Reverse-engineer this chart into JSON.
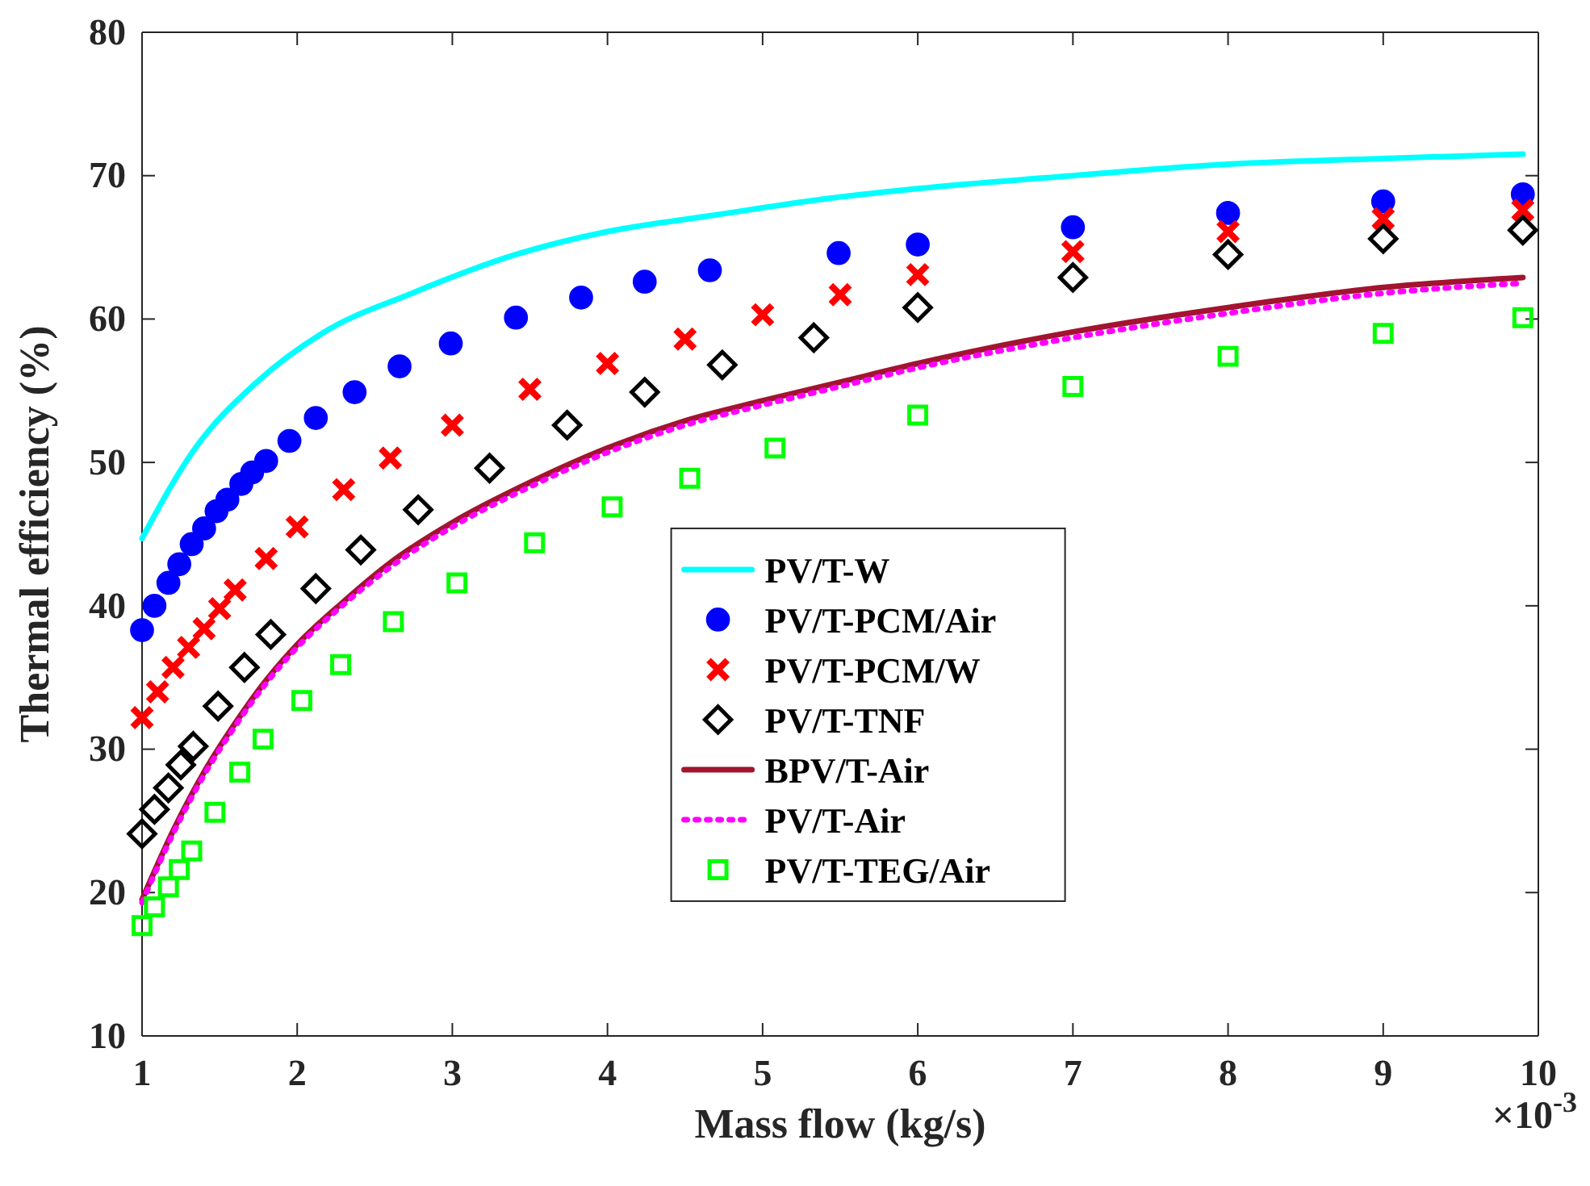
{
  "chart_data": {
    "type": "line",
    "xlabel": "Mass flow (kg/s)",
    "ylabel": "Thermal efficiency (%)",
    "xlim": [
      1,
      10
    ],
    "xticks": [
      1,
      2,
      3,
      4,
      5,
      6,
      7,
      8,
      9,
      10
    ],
    "ylim": [
      10,
      80
    ],
    "yticks": [
      10,
      20,
      30,
      40,
      50,
      60,
      70,
      80
    ],
    "grid": false,
    "legend": "center",
    "annotations": [
      "×10$^{-3}$"
    ],
    "series": [
      {
        "name": "PV/T-W",
        "color": "#00ffff",
        "line_style": "solid",
        "marker": "none",
        "x": [
          1.0,
          1.33,
          1.74,
          2.16,
          2.74,
          3.41,
          4.0,
          4.66,
          5.49,
          6,
          7,
          8,
          9,
          9.9
        ],
        "values": [
          44.7,
          50.8,
          55.6,
          59.0,
          61.8,
          64.5,
          66.1,
          67.2,
          68.5,
          69.1,
          70.0,
          70.8,
          71.2,
          71.5
        ]
      },
      {
        "name": "PV/T-PCM/Air",
        "type": "scatter",
        "color": "#0000ff",
        "marker": "circle",
        "x": [
          1.0,
          1.08,
          1.17,
          1.24,
          1.32,
          1.4,
          1.48,
          1.55,
          1.64,
          1.71,
          1.8,
          1.95,
          2.12,
          2.37,
          2.66,
          2.99,
          3.41,
          3.83,
          4.24,
          4.66,
          5.49,
          6,
          7,
          8,
          9,
          9.9
        ],
        "values": [
          38.3,
          40.0,
          41.6,
          42.9,
          44.3,
          45.4,
          46.6,
          47.4,
          48.5,
          49.3,
          50.1,
          51.5,
          53.1,
          54.9,
          56.7,
          58.3,
          60.1,
          61.5,
          62.6,
          63.4,
          64.6,
          65.2,
          66.4,
          67.4,
          68.2,
          68.7
        ]
      },
      {
        "name": "PV/T-PCM/W",
        "type": "scatter",
        "color": "#ff0000",
        "marker": "cross",
        "x": [
          1.0,
          1.1,
          1.2,
          1.3,
          1.4,
          1.5,
          1.6,
          1.8,
          2,
          2.3,
          2.6,
          3,
          3.5,
          4,
          4.5,
          5,
          5.5,
          6,
          7,
          8,
          9,
          9.9
        ],
        "values": [
          32.2,
          34.0,
          35.7,
          37.1,
          38.4,
          39.8,
          41.1,
          43.3,
          45.5,
          48.1,
          50.3,
          52.6,
          55.1,
          56.9,
          58.6,
          60.3,
          61.7,
          63.1,
          64.7,
          66.1,
          67.0,
          67.6
        ]
      },
      {
        "name": "PV/T-TNF",
        "type": "scatter",
        "color": "#000000",
        "marker": "diamond",
        "x": [
          1.0,
          1.08,
          1.17,
          1.25,
          1.33,
          1.49,
          1.66,
          1.83,
          2.12,
          2.41,
          2.78,
          3.24,
          3.74,
          4.24,
          4.74,
          5.33,
          6,
          7,
          8,
          9,
          9.9
        ],
        "values": [
          24.1,
          25.8,
          27.3,
          28.9,
          30.2,
          33.0,
          35.7,
          38.0,
          41.2,
          43.9,
          46.7,
          49.6,
          52.6,
          54.9,
          56.8,
          58.7,
          60.8,
          62.9,
          64.5,
          65.6,
          66.2
        ]
      },
      {
        "name": "BPV/T-Air",
        "color": "#a2142f",
        "line_style": "solid",
        "marker": "none",
        "x": [
          1.0,
          1.2,
          1.4,
          1.6,
          1.8,
          2,
          2.3,
          2.6,
          3,
          3.5,
          4,
          4.5,
          5,
          5.5,
          6,
          7,
          8,
          9,
          9.9
        ],
        "values": [
          19.5,
          24.3,
          28.4,
          31.8,
          34.8,
          37.3,
          40.3,
          43.0,
          45.8,
          48.6,
          51.0,
          52.9,
          54.3,
          55.6,
          56.9,
          59.1,
          60.8,
          62.2,
          62.9
        ]
      },
      {
        "name": "PV/T-Air",
        "color": "#ff00ff",
        "line_style": "dotted",
        "marker": "none",
        "x": [
          1.0,
          1.2,
          1.4,
          1.6,
          1.8,
          2,
          2.3,
          2.6,
          3,
          3.5,
          4,
          4.5,
          5,
          5.5,
          6,
          7,
          8,
          9,
          9.9
        ],
        "values": [
          19.3,
          24.1,
          28.2,
          31.6,
          34.6,
          37.1,
          40.1,
          42.7,
          45.5,
          48.3,
          50.7,
          52.6,
          54.0,
          55.3,
          56.6,
          58.7,
          60.4,
          61.8,
          62.5
        ]
      },
      {
        "name": "PV/T-TEG/Air",
        "type": "scatter",
        "color": "#00ff00",
        "marker": "square",
        "x": [
          1.0,
          1.08,
          1.17,
          1.24,
          1.32,
          1.47,
          1.63,
          1.78,
          2.03,
          2.28,
          2.62,
          3.03,
          3.53,
          4.03,
          4.53,
          5.08,
          6,
          7,
          8,
          9,
          9.9
        ],
        "values": [
          17.7,
          19.0,
          20.4,
          21.6,
          22.9,
          25.6,
          28.4,
          30.7,
          33.4,
          35.9,
          38.9,
          41.6,
          44.4,
          46.9,
          48.9,
          51.0,
          53.3,
          55.3,
          57.4,
          59.0,
          60.1
        ]
      }
    ]
  }
}
